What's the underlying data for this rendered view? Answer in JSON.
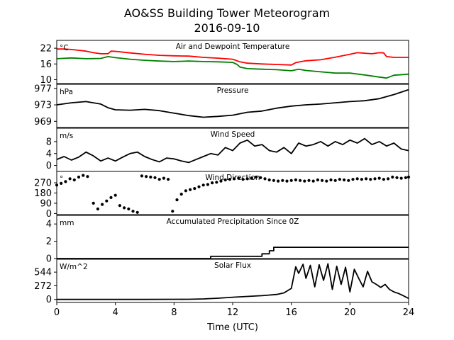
{
  "figure": {
    "title_line1": "AO&SS Building Tower Meteorogram",
    "title_line2": "2016-09-10",
    "xlabel": "Time (UTC)",
    "x_ticks": [
      "0",
      "4",
      "8",
      "12",
      "16",
      "20",
      "24"
    ]
  },
  "chart_data": [
    {
      "type": "line",
      "title": "Air and Dewpoint Temperature",
      "unit": "°C",
      "xlim": [
        0,
        24
      ],
      "ylim": [
        8.5,
        25
      ],
      "yticks": [
        10,
        16,
        22
      ],
      "series": [
        {
          "color": "#ff0000",
          "x": [
            0,
            0.5,
            1,
            1.5,
            2,
            2.5,
            3,
            3.5,
            3.7,
            4,
            5,
            6,
            7,
            8,
            9,
            10,
            11,
            12,
            12.3,
            12.5,
            13,
            14,
            15,
            16,
            16.3,
            17,
            18,
            19,
            20,
            20.5,
            21,
            21.5,
            22,
            22.3,
            22.5,
            23,
            24
          ],
          "values": [
            21.7,
            21.7,
            21.5,
            21.2,
            20.9,
            20.3,
            19.9,
            19.9,
            20.9,
            20.8,
            20.2,
            19.7,
            19.3,
            19.1,
            19.0,
            18.5,
            18.2,
            17.8,
            17.2,
            16.8,
            16.3,
            16.0,
            15.8,
            15.6,
            16.5,
            17.2,
            17.6,
            18.6,
            19.7,
            20.3,
            20.1,
            19.9,
            20.3,
            20.2,
            18.8,
            18.5,
            18.5
          ]
        },
        {
          "color": "#008000",
          "x": [
            0,
            1,
            2,
            3,
            3.5,
            4,
            5,
            6,
            7,
            8,
            9,
            10,
            11,
            12,
            12.3,
            12.5,
            13,
            14,
            15,
            16,
            16.5,
            17,
            18,
            19,
            20,
            21,
            22,
            22.5,
            23,
            24
          ],
          "values": [
            18.0,
            18.3,
            18.0,
            18.1,
            18.8,
            18.4,
            17.8,
            17.4,
            17.1,
            16.9,
            17.1,
            16.9,
            16.8,
            16.6,
            15.8,
            14.8,
            14.2,
            14.0,
            13.8,
            13.4,
            14.0,
            13.5,
            13.0,
            12.5,
            12.5,
            11.8,
            11.0,
            10.6,
            11.7,
            12.1
          ]
        }
      ]
    },
    {
      "type": "line",
      "title": "Pressure",
      "unit": "hPa",
      "xlim": [
        0,
        24
      ],
      "ylim": [
        967.5,
        978
      ],
      "yticks": [
        969,
        973,
        977
      ],
      "series": [
        {
          "color": "#000000",
          "x": [
            0,
            1,
            2,
            3,
            3.5,
            4,
            5,
            6,
            7,
            8,
            9,
            10,
            11,
            12,
            13,
            14,
            15,
            16,
            17,
            18,
            19,
            20,
            21,
            22,
            23,
            24
          ],
          "values": [
            973.0,
            973.5,
            973.8,
            973.2,
            972.3,
            971.8,
            971.7,
            971.9,
            971.6,
            971.0,
            970.4,
            970.0,
            970.2,
            970.5,
            971.2,
            971.5,
            972.2,
            972.7,
            973.0,
            973.2,
            973.5,
            973.8,
            974.0,
            974.5,
            975.5,
            976.7
          ]
        }
      ]
    },
    {
      "type": "line",
      "title": "Wind Speed",
      "unit": "m/s",
      "xlim": [
        0,
        24
      ],
      "ylim": [
        -2,
        12.5
      ],
      "yticks": [
        0,
        4,
        8
      ],
      "series": [
        {
          "color": "#000000",
          "x": [
            0,
            0.5,
            1,
            1.5,
            2,
            2.5,
            3,
            3.5,
            4,
            4.5,
            5,
            5.5,
            6,
            6.5,
            7,
            7.5,
            8,
            8.5,
            9,
            9.5,
            10,
            10.5,
            11,
            11.5,
            12,
            12.5,
            13,
            13.5,
            14,
            14.5,
            15,
            15.5,
            16,
            16.5,
            17,
            17.5,
            18,
            18.5,
            19,
            19.5,
            20,
            20.5,
            21,
            21.5,
            22,
            22.5,
            23,
            23.5,
            24
          ],
          "values": [
            2.0,
            3.0,
            1.8,
            2.8,
            4.5,
            3.2,
            1.5,
            2.5,
            1.5,
            2.8,
            4.0,
            4.5,
            3.0,
            2.0,
            1.2,
            2.5,
            2.2,
            1.5,
            1.0,
            2.0,
            3.0,
            4.0,
            3.5,
            6.0,
            5.0,
            7.5,
            8.5,
            6.5,
            7.0,
            5.0,
            4.5,
            6.0,
            4.0,
            7.5,
            6.5,
            7.0,
            8.0,
            6.5,
            8.0,
            7.0,
            8.5,
            7.5,
            9.0,
            7.0,
            8.0,
            6.5,
            7.5,
            5.5,
            5.0
          ]
        }
      ]
    },
    {
      "type": "scatter",
      "title": "Wind Direction",
      "unit": "°",
      "xlim": [
        0,
        24
      ],
      "ylim": [
        -10,
        370
      ],
      "yticks": [
        0,
        90,
        180,
        270
      ],
      "series": [
        {
          "color": "#000000",
          "x": [
            0,
            0.3,
            0.6,
            0.9,
            1.2,
            1.5,
            1.8,
            2.1,
            2.5,
            2.8,
            3.1,
            3.4,
            3.7,
            4.0,
            4.3,
            4.6,
            4.9,
            5.2,
            5.5,
            5.8,
            6.1,
            6.4,
            6.7,
            7.0,
            7.3,
            7.6,
            7.9,
            8.2,
            8.5,
            8.8,
            9.1,
            9.4,
            9.7,
            10.0,
            10.3,
            10.6,
            10.9,
            11.2,
            11.5,
            11.8,
            12.1,
            12.4,
            12.7,
            13.0,
            13.3,
            13.6,
            13.9,
            14.2,
            14.5,
            14.8,
            15.1,
            15.4,
            15.7,
            16.0,
            16.3,
            16.6,
            16.9,
            17.2,
            17.5,
            17.8,
            18.1,
            18.4,
            18.7,
            19.0,
            19.3,
            19.6,
            19.9,
            20.2,
            20.5,
            20.8,
            21.1,
            21.4,
            21.7,
            22.0,
            22.3,
            22.6,
            22.9,
            23.2,
            23.5,
            23.8,
            24.0
          ],
          "values": [
            250,
            265,
            280,
            305,
            295,
            320,
            335,
            325,
            90,
            40,
            80,
            110,
            140,
            160,
            70,
            50,
            40,
            20,
            10,
            330,
            325,
            320,
            315,
            300,
            310,
            300,
            20,
            120,
            170,
            200,
            210,
            220,
            235,
            250,
            255,
            270,
            275,
            285,
            295,
            300,
            305,
            310,
            300,
            305,
            310,
            320,
            315,
            305,
            295,
            290,
            285,
            290,
            285,
            290,
            295,
            290,
            285,
            290,
            285,
            295,
            290,
            285,
            295,
            290,
            300,
            295,
            290,
            300,
            305,
            300,
            305,
            300,
            305,
            310,
            300,
            305,
            320,
            315,
            310,
            315,
            320
          ]
        }
      ]
    },
    {
      "type": "line",
      "title": "Accumulated Precipitation Since 0Z",
      "unit": "mm",
      "xlim": [
        0,
        24
      ],
      "ylim": [
        0,
        5
      ],
      "yticks": [
        0,
        2,
        4
      ],
      "series": [
        {
          "color": "#000000",
          "x": [
            0,
            10.5,
            10.5,
            14.0,
            14.0,
            14.5,
            14.5,
            14.8,
            14.8,
            24
          ],
          "values": [
            0,
            0,
            0.25,
            0.25,
            0.55,
            0.55,
            0.9,
            0.9,
            1.3,
            1.3
          ]
        }
      ]
    },
    {
      "type": "line",
      "title": "Solar Flux",
      "unit": "W/m^2",
      "xlim": [
        0,
        24
      ],
      "ylim": [
        -60,
        800
      ],
      "yticks": [
        0,
        272,
        544
      ],
      "series": [
        {
          "color": "#000000",
          "x": [
            0,
            6,
            9,
            10,
            11,
            12,
            13,
            14,
            15,
            15.5,
            16,
            16.3,
            16.5,
            16.8,
            17.0,
            17.3,
            17.6,
            17.9,
            18.2,
            18.5,
            18.8,
            19.1,
            19.4,
            19.7,
            20.0,
            20.3,
            20.6,
            20.9,
            21.2,
            21.5,
            21.8,
            22.1,
            22.4,
            22.7,
            23.0,
            23.3,
            23.6,
            24
          ],
          "values": [
            0,
            0,
            3,
            10,
            25,
            45,
            60,
            75,
            100,
            130,
            220,
            650,
            520,
            700,
            420,
            680,
            250,
            690,
            380,
            710,
            200,
            660,
            300,
            640,
            150,
            600,
            420,
            250,
            560,
            350,
            300,
            240,
            300,
            200,
            150,
            120,
            80,
            20
          ]
        }
      ]
    }
  ]
}
